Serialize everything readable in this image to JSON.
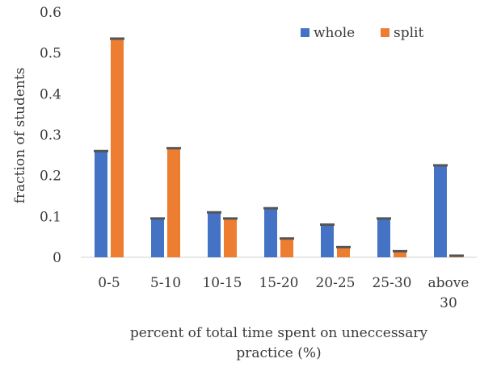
{
  "chart_data": {
    "type": "bar",
    "title": "",
    "xlabel_lines": [
      "percent of total time spent on uneccessary",
      "practice (%)"
    ],
    "ylabel": "fraction of students",
    "ylim": [
      0,
      0.6
    ],
    "yticks": [
      "0",
      "0.1",
      "0.2",
      "0.3",
      "0.4",
      "0.5",
      "0.6"
    ],
    "categories": [
      [
        "0-5"
      ],
      [
        "5-10"
      ],
      [
        "10-15"
      ],
      [
        "15-20"
      ],
      [
        "20-25"
      ],
      [
        "25-30"
      ],
      [
        "above",
        "30"
      ]
    ],
    "series": [
      {
        "name": "whole",
        "color": "#4472c4",
        "values": [
          0.26,
          0.095,
          0.11,
          0.12,
          0.08,
          0.095,
          0.225
        ]
      },
      {
        "name": "split",
        "color": "#ed7d31",
        "values": [
          0.535,
          0.267,
          0.095,
          0.046,
          0.025,
          0.015,
          0.004
        ]
      }
    ],
    "error_bars": true,
    "legend_position": "top-right",
    "grid": false
  }
}
